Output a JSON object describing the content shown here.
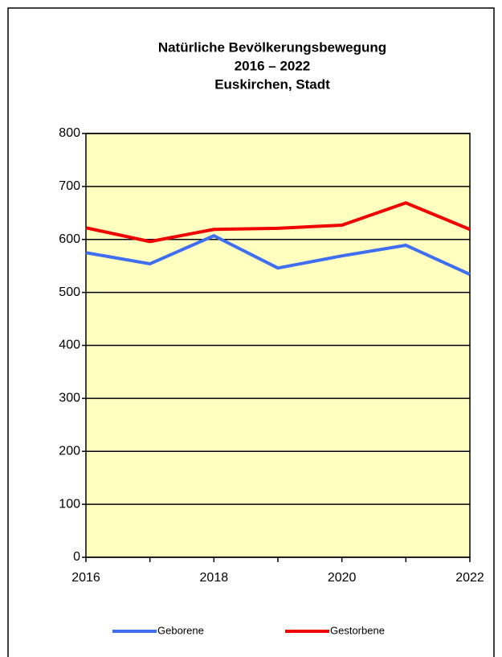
{
  "chart_data": {
    "type": "line",
    "title": [
      "Natürliche Bevölkerungsbewegung",
      "2016 – 2022",
      "Euskirchen, Stadt"
    ],
    "x": [
      2016,
      2017,
      2018,
      2019,
      2020,
      2021,
      2022
    ],
    "xlim": [
      2016,
      2022
    ],
    "xticks": [
      2016,
      2018,
      2020,
      2022
    ],
    "ylim": [
      0,
      800
    ],
    "yticks": [
      0,
      100,
      200,
      300,
      400,
      500,
      600,
      700,
      800
    ],
    "grid": true,
    "legend": "bottom",
    "plot_background": "#ffffc0",
    "series": [
      {
        "name": "Geborene",
        "color": "#3f6ef0",
        "values": [
          575,
          554,
          607,
          546,
          569,
          589,
          534
        ]
      },
      {
        "name": "Gestorbene",
        "color": "#f00000",
        "values": [
          622,
          596,
          619,
          621,
          627,
          669,
          619
        ]
      }
    ]
  }
}
